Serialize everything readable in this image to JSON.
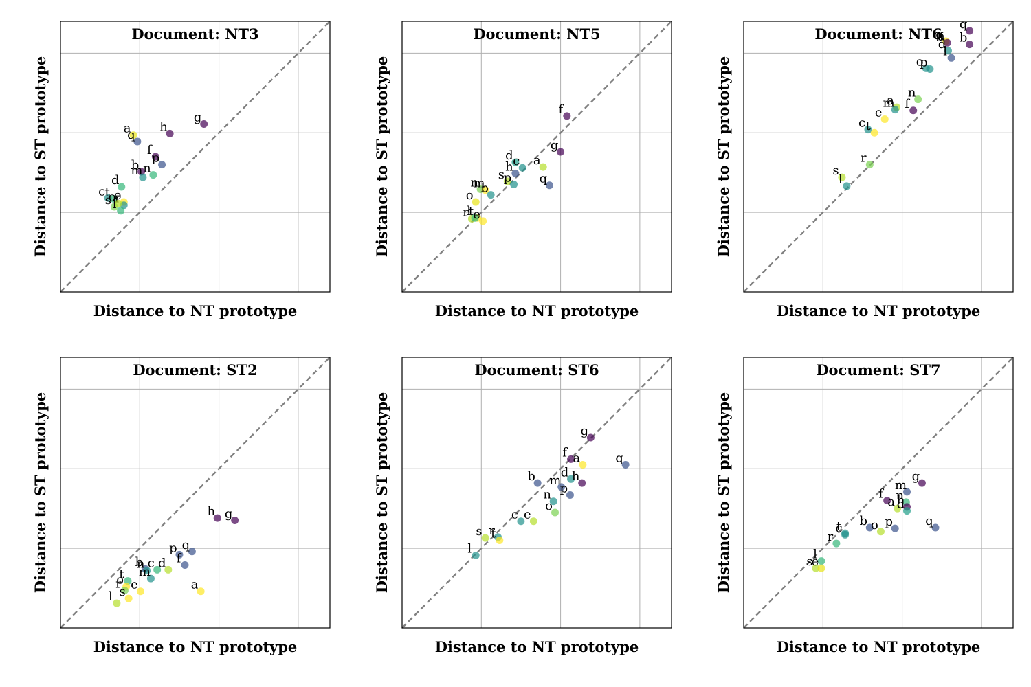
{
  "chart_data": [
    {
      "type": "scatter",
      "title": "Document: NT3",
      "xlabel": "Distance to NT prototype",
      "ylabel": "Distance to ST prototype",
      "xlim": [
        0,
        3.4
      ],
      "ylim": [
        0,
        3.4
      ],
      "grid": true,
      "diagonal": true,
      "points": [
        {
          "label": "a",
          "x": 0.92,
          "y": 1.97,
          "color": "#e8e419"
        },
        {
          "label": "q",
          "x": 0.97,
          "y": 1.89,
          "color": "#3b528b"
        },
        {
          "label": "h",
          "x": 1.38,
          "y": 1.99,
          "color": "#440154"
        },
        {
          "label": "g",
          "x": 1.81,
          "y": 2.11,
          "color": "#440154"
        },
        {
          "label": "f",
          "x": 1.2,
          "y": 1.7,
          "color": "#440154"
        },
        {
          "label": "p",
          "x": 1.28,
          "y": 1.6,
          "color": "#3b528b"
        },
        {
          "label": "n",
          "x": 1.17,
          "y": 1.47,
          "color": "#35b779"
        },
        {
          "label": "b",
          "x": 1.02,
          "y": 1.51,
          "color": "#440154"
        },
        {
          "label": "m",
          "x": 1.04,
          "y": 1.44,
          "color": "#21918c"
        },
        {
          "label": "d",
          "x": 0.77,
          "y": 1.32,
          "color": "#35b779"
        },
        {
          "label": "c",
          "x": 0.6,
          "y": 1.18,
          "color": "#21918c"
        },
        {
          "label": "t",
          "x": 0.67,
          "y": 1.17,
          "color": "#35b779"
        },
        {
          "label": "e",
          "x": 0.8,
          "y": 1.13,
          "color": "#fde725"
        },
        {
          "label": "r",
          "x": 0.8,
          "y": 1.09,
          "color": "#21918c"
        },
        {
          "label": "s",
          "x": 0.68,
          "y": 1.07,
          "color": "#7ad151"
        },
        {
          "label": "o",
          "x": 0.73,
          "y": 1.11,
          "color": "#b5de2b"
        },
        {
          "label": "l",
          "x": 0.76,
          "y": 1.02,
          "color": "#35b779"
        }
      ]
    },
    {
      "type": "scatter",
      "title": "Document: NT5",
      "xlabel": "Distance to NT prototype",
      "ylabel": "Distance to ST prototype",
      "xlim": [
        0,
        3.4
      ],
      "ylim": [
        0,
        3.4
      ],
      "grid": true,
      "diagonal": true,
      "points": [
        {
          "label": "f",
          "x": 2.08,
          "y": 2.21,
          "color": "#440154"
        },
        {
          "label": "g",
          "x": 2.0,
          "y": 1.76,
          "color": "#440154"
        },
        {
          "label": "a",
          "x": 1.78,
          "y": 1.57,
          "color": "#b5de2b"
        },
        {
          "label": "d",
          "x": 1.43,
          "y": 1.63,
          "color": "#1f9e89"
        },
        {
          "label": "c",
          "x": 1.52,
          "y": 1.56,
          "color": "#21918c"
        },
        {
          "label": "h",
          "x": 1.43,
          "y": 1.49,
          "color": "#3b528b"
        },
        {
          "label": "q",
          "x": 1.86,
          "y": 1.34,
          "color": "#3b528b"
        },
        {
          "label": "s",
          "x": 1.33,
          "y": 1.39,
          "color": "#b5de2b"
        },
        {
          "label": "p",
          "x": 1.41,
          "y": 1.35,
          "color": "#21918c"
        },
        {
          "label": "n",
          "x": 0.99,
          "y": 1.29,
          "color": "#7ad151"
        },
        {
          "label": "m",
          "x": 1.05,
          "y": 1.28,
          "color": "#fde725"
        },
        {
          "label": "b",
          "x": 1.12,
          "y": 1.22,
          "color": "#21918c"
        },
        {
          "label": "o",
          "x": 0.93,
          "y": 1.13,
          "color": "#e8e419"
        },
        {
          "label": "r",
          "x": 0.88,
          "y": 0.92,
          "color": "#b5de2b"
        },
        {
          "label": "t",
          "x": 0.95,
          "y": 0.93,
          "color": "#fde725"
        },
        {
          "label": "l",
          "x": 0.92,
          "y": 0.93,
          "color": "#35b779"
        },
        {
          "label": "e",
          "x": 1.02,
          "y": 0.89,
          "color": "#fde725"
        }
      ]
    },
    {
      "type": "scatter",
      "title": "Document: NT6",
      "xlabel": "Distance to NT prototype",
      "ylabel": "Distance to ST prototype",
      "xlim": [
        0,
        3.4
      ],
      "ylim": [
        0,
        3.4
      ],
      "grid": true,
      "diagonal": true,
      "points": [
        {
          "label": "q",
          "x": 2.85,
          "y": 3.28,
          "color": "#440154"
        },
        {
          "label": "g",
          "x": 2.55,
          "y": 3.15,
          "color": "#fde725"
        },
        {
          "label": "a",
          "x": 2.57,
          "y": 3.13,
          "color": "#440154"
        },
        {
          "label": "b",
          "x": 2.85,
          "y": 3.11,
          "color": "#440154"
        },
        {
          "label": "d",
          "x": 2.58,
          "y": 3.03,
          "color": "#21918c"
        },
        {
          "label": "l",
          "x": 2.62,
          "y": 2.94,
          "color": "#3b528b"
        },
        {
          "label": "o",
          "x": 2.3,
          "y": 2.81,
          "color": "#21918c"
        },
        {
          "label": "p",
          "x": 2.35,
          "y": 2.8,
          "color": "#21918c"
        },
        {
          "label": "n",
          "x": 2.2,
          "y": 2.42,
          "color": "#7ad151"
        },
        {
          "label": "a",
          "x": 1.93,
          "y": 2.32,
          "color": "#b5de2b"
        },
        {
          "label": "m",
          "x": 1.91,
          "y": 2.29,
          "color": "#21918c"
        },
        {
          "label": "f",
          "x": 2.14,
          "y": 2.28,
          "color": "#440154"
        },
        {
          "label": "e",
          "x": 1.78,
          "y": 2.17,
          "color": "#fde725"
        },
        {
          "label": "c",
          "x": 1.57,
          "y": 2.04,
          "color": "#21918c"
        },
        {
          "label": "t",
          "x": 1.65,
          "y": 2.0,
          "color": "#fde725"
        },
        {
          "label": "r",
          "x": 1.59,
          "y": 1.6,
          "color": "#7ad151"
        },
        {
          "label": "s",
          "x": 1.24,
          "y": 1.44,
          "color": "#b5de2b"
        },
        {
          "label": "l",
          "x": 1.3,
          "y": 1.33,
          "color": "#21918c"
        }
      ]
    },
    {
      "type": "scatter",
      "title": "Document: ST2",
      "xlabel": "Distance to NT prototype",
      "ylabel": "Distance to ST prototype",
      "xlim": [
        0,
        3.4
      ],
      "ylim": [
        0,
        3.4
      ],
      "grid": true,
      "diagonal": true,
      "points": [
        {
          "label": "h",
          "x": 1.98,
          "y": 1.38,
          "color": "#440154"
        },
        {
          "label": "g",
          "x": 2.2,
          "y": 1.35,
          "color": "#440154"
        },
        {
          "label": "q",
          "x": 1.66,
          "y": 0.96,
          "color": "#3b528b"
        },
        {
          "label": "p",
          "x": 1.5,
          "y": 0.92,
          "color": "#3b528b"
        },
        {
          "label": "f",
          "x": 1.57,
          "y": 0.79,
          "color": "#3b528b"
        },
        {
          "label": "d",
          "x": 1.36,
          "y": 0.73,
          "color": "#b5de2b"
        },
        {
          "label": "c",
          "x": 1.22,
          "y": 0.73,
          "color": "#35b779"
        },
        {
          "label": "b",
          "x": 1.07,
          "y": 0.74,
          "color": "#3b528b"
        },
        {
          "label": "n",
          "x": 1.09,
          "y": 0.72,
          "color": "#21918c"
        },
        {
          "label": "m",
          "x": 1.14,
          "y": 0.62,
          "color": "#21918c"
        },
        {
          "label": "t",
          "x": 0.85,
          "y": 0.59,
          "color": "#35b779"
        },
        {
          "label": "o",
          "x": 0.83,
          "y": 0.52,
          "color": "#fde725"
        },
        {
          "label": "r",
          "x": 0.81,
          "y": 0.47,
          "color": "#7ad151"
        },
        {
          "label": "e",
          "x": 1.01,
          "y": 0.46,
          "color": "#fde725"
        },
        {
          "label": "a",
          "x": 1.77,
          "y": 0.46,
          "color": "#fde725"
        },
        {
          "label": "s",
          "x": 0.86,
          "y": 0.37,
          "color": "#fde725"
        },
        {
          "label": "l",
          "x": 0.71,
          "y": 0.31,
          "color": "#b5de2b"
        }
      ]
    },
    {
      "type": "scatter",
      "title": "Document: ST6",
      "xlabel": "Distance to NT prototype",
      "ylabel": "Distance to ST prototype",
      "xlim": [
        0,
        3.4
      ],
      "ylim": [
        0,
        3.4
      ],
      "grid": true,
      "diagonal": true,
      "points": [
        {
          "label": "g",
          "x": 2.38,
          "y": 2.39,
          "color": "#440154"
        },
        {
          "label": "f",
          "x": 2.13,
          "y": 2.12,
          "color": "#440154"
        },
        {
          "label": "a",
          "x": 2.28,
          "y": 2.05,
          "color": "#fde725"
        },
        {
          "label": "q",
          "x": 2.82,
          "y": 2.05,
          "color": "#3b528b"
        },
        {
          "label": "d",
          "x": 2.13,
          "y": 1.87,
          "color": "#21918c"
        },
        {
          "label": "h",
          "x": 2.27,
          "y": 1.82,
          "color": "#440154"
        },
        {
          "label": "b",
          "x": 1.71,
          "y": 1.82,
          "color": "#3b528b"
        },
        {
          "label": "m",
          "x": 2.01,
          "y": 1.77,
          "color": "#3b528b"
        },
        {
          "label": "p",
          "x": 2.12,
          "y": 1.67,
          "color": "#3b528b"
        },
        {
          "label": "n",
          "x": 1.91,
          "y": 1.59,
          "color": "#21918c"
        },
        {
          "label": "o",
          "x": 1.93,
          "y": 1.45,
          "color": "#7ad151"
        },
        {
          "label": "c",
          "x": 1.5,
          "y": 1.34,
          "color": "#21918c"
        },
        {
          "label": "e",
          "x": 1.66,
          "y": 1.34,
          "color": "#b5de2b"
        },
        {
          "label": "s",
          "x": 1.05,
          "y": 1.13,
          "color": "#b5de2b"
        },
        {
          "label": "r",
          "x": 1.21,
          "y": 1.14,
          "color": "#21918c"
        },
        {
          "label": "t",
          "x": 1.23,
          "y": 1.1,
          "color": "#fde725"
        },
        {
          "label": "l",
          "x": 0.93,
          "y": 0.91,
          "color": "#21918c"
        }
      ]
    },
    {
      "type": "scatter",
      "title": "Document: ST7",
      "xlabel": "Distance to NT prototype",
      "ylabel": "Distance to ST prototype",
      "xlim": [
        0,
        3.4
      ],
      "ylim": [
        0,
        3.4
      ],
      "grid": true,
      "diagonal": true,
      "points": [
        {
          "label": "g",
          "x": 2.25,
          "y": 1.82,
          "color": "#440154"
        },
        {
          "label": "m",
          "x": 2.06,
          "y": 1.71,
          "color": "#3b528b"
        },
        {
          "label": "f",
          "x": 1.81,
          "y": 1.6,
          "color": "#440154"
        },
        {
          "label": "a",
          "x": 1.94,
          "y": 1.5,
          "color": "#b5de2b"
        },
        {
          "label": "n",
          "x": 2.05,
          "y": 1.58,
          "color": "#35b779"
        },
        {
          "label": "h",
          "x": 2.06,
          "y": 1.52,
          "color": "#440154"
        },
        {
          "label": "d",
          "x": 2.06,
          "y": 1.47,
          "color": "#1f9e89"
        },
        {
          "label": "q",
          "x": 2.42,
          "y": 1.26,
          "color": "#3b528b"
        },
        {
          "label": "b",
          "x": 1.59,
          "y": 1.26,
          "color": "#3b528b"
        },
        {
          "label": "p",
          "x": 1.91,
          "y": 1.25,
          "color": "#3b528b"
        },
        {
          "label": "o",
          "x": 1.73,
          "y": 1.21,
          "color": "#b5de2b"
        },
        {
          "label": "t",
          "x": 1.28,
          "y": 1.19,
          "color": "#21918c"
        },
        {
          "label": "c",
          "x": 1.28,
          "y": 1.17,
          "color": "#21918c"
        },
        {
          "label": "r",
          "x": 1.17,
          "y": 1.06,
          "color": "#35b779"
        },
        {
          "label": "l",
          "x": 0.98,
          "y": 0.84,
          "color": "#35b779"
        },
        {
          "label": "s",
          "x": 0.91,
          "y": 0.75,
          "color": "#b5de2b"
        },
        {
          "label": "e",
          "x": 0.98,
          "y": 0.75,
          "color": "#e8e419"
        }
      ]
    }
  ]
}
